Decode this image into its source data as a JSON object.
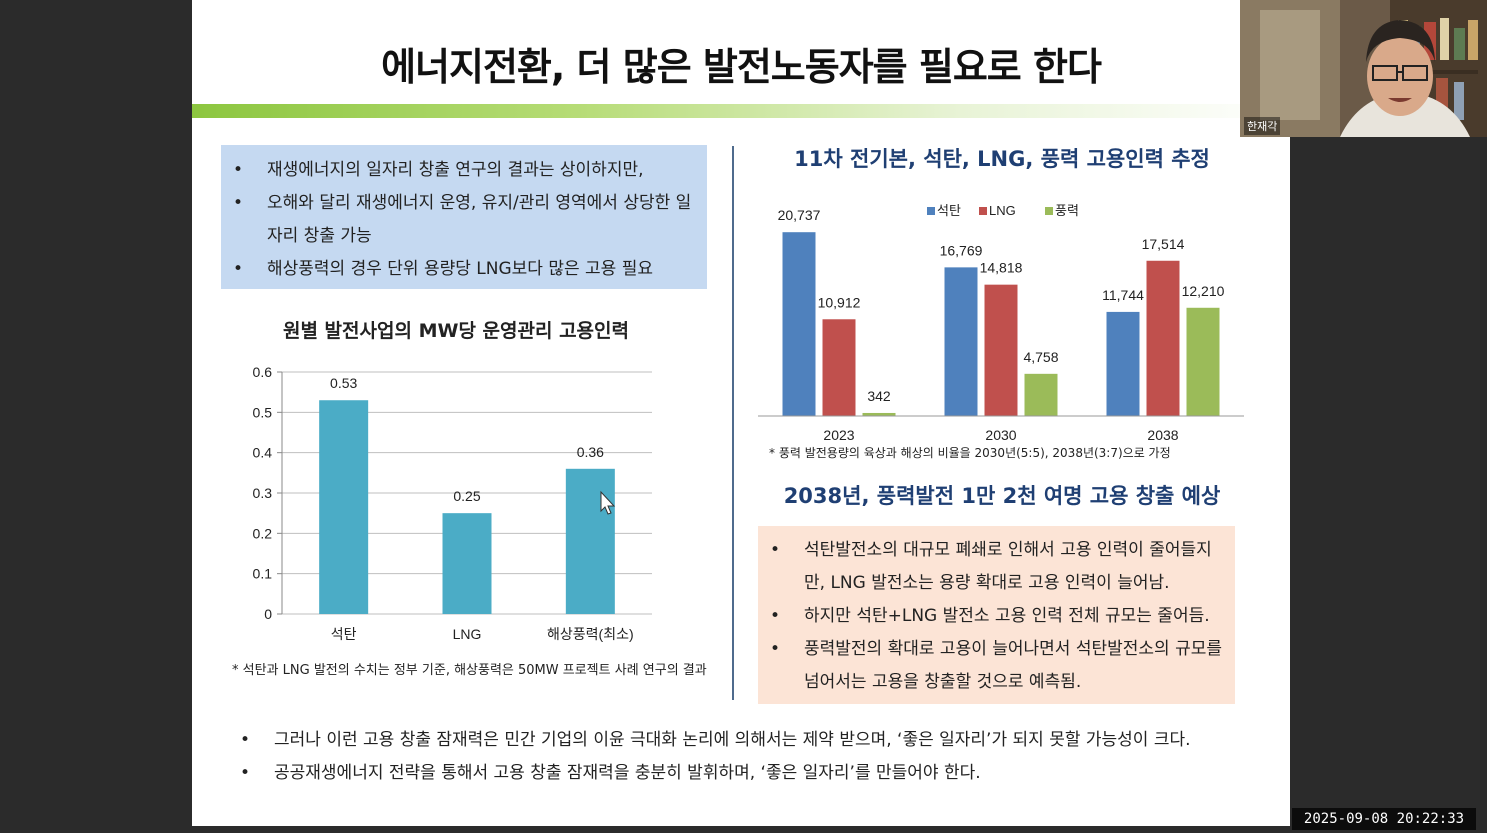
{
  "slide": {
    "title": "에너지전환, 더 많은 발전노동자를 필요로 한다",
    "blue_box_bullets": [
      "재생에너지의 일자리 창출 연구의 결과는 상이하지만,",
      "오해와 달리 재생에너지 운영, 유지/관리 영역에서 상당한 일자리 창출 가능",
      "해상풍력의 경우 단위 용량당 LNG보다 많은 고용 필요"
    ],
    "left_chart_note": "* 석탄과 LNG 발전의 수치는 정부 기준, 해상풍력은 50MW 프로젝트 사례 연구의 결과",
    "right_chart_note": "* 풍력 발전용량의 육상과 해상의 비율을 2030년(5:5), 2038년(3:7)으로 가정",
    "right_title_2": "2038년, 풍력발전 1만 2천 여명 고용 창출 예상",
    "orange_box_bullets": [
      "석탄발전소의 대규모 폐쇄로 인해서 고용 인력이 줄어들지만, LNG 발전소는 용량 확대로 고용 인력이 늘어남.",
      "하지만 석탄+LNG 발전소 고용 인력 전체 규모는 줄어듬.",
      "풍력발전의 확대로 고용이 늘어나면서 석탄발전소의 규모를 넘어서는 고용을 창출할 것으로 예측됨."
    ],
    "bottom_bullets": [
      "그러나 이런 고용 창출 잠재력은 민간 기업의 이윤 극대화 논리에 의해서는 제약 받으며, ‘좋은 일자리’가 되지 못할 가능성이 크다.",
      "공공재생에너지 전략을 통해서 고용 창출 잠재력을 충분히 발휘하며, ‘좋은 일자리’를 만들어야 한다."
    ]
  },
  "chart_data": [
    {
      "type": "bar",
      "title": "원별 발전사업의 MW당 운영관리 고용인력",
      "categories": [
        "석탄",
        "LNG",
        "해상풍력(최소)"
      ],
      "values": [
        0.53,
        0.25,
        0.36
      ],
      "value_labels": [
        "0.53",
        "0.25",
        "0.36"
      ],
      "yticks": [
        "0",
        "0.1",
        "0.2",
        "0.3",
        "0.4",
        "0.5",
        "0.6"
      ],
      "ylim": [
        0,
        0.6
      ],
      "grid": true,
      "color": "#4bacc6"
    },
    {
      "type": "bar",
      "title": "11차 전기본, 석탄, LNG, 풍력 고용인력 추정",
      "categories": [
        "2023",
        "2030",
        "2038"
      ],
      "series": [
        {
          "name": "석탄",
          "values": [
            20737,
            16769,
            11744
          ],
          "labels": [
            "20,737",
            "16,769",
            "11,744"
          ],
          "color": "#4f81bd"
        },
        {
          "name": "LNG",
          "values": [
            10912,
            14818,
            17514
          ],
          "labels": [
            "10,912",
            "14,818",
            "17,514"
          ],
          "color": "#c0504d"
        },
        {
          "name": "풍력",
          "values": [
            342,
            4758,
            12210
          ],
          "labels": [
            "342",
            "4,758",
            "12,210"
          ],
          "color": "#9bbb59"
        }
      ],
      "ylim": [
        0,
        22000
      ],
      "legend": "top-center",
      "grid": false
    }
  ],
  "webcam": {
    "name": "한재각"
  },
  "timestamp": "2025-09-08  20:22:33"
}
